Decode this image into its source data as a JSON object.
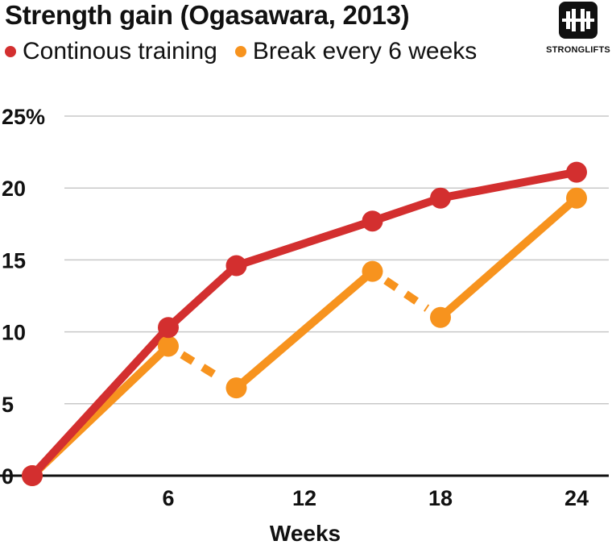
{
  "title": "Strength gain (Ogasawara, 2013)",
  "logo": {
    "text": "STRONGLIFTS",
    "icon": "barbell-icon"
  },
  "chart_data": {
    "type": "line",
    "title": "Strength gain (Ogasawara, 2013)",
    "xlabel": "Weeks",
    "ylabel": "",
    "xlim": [
      0,
      24
    ],
    "ylim": [
      0,
      25
    ],
    "x_ticks": [
      "6",
      "12",
      "18",
      "24"
    ],
    "x_tick_values": [
      6,
      12,
      18,
      24
    ],
    "y_ticks": [
      "0",
      "5",
      "10",
      "15",
      "20",
      "25%"
    ],
    "y_tick_values": [
      0,
      5,
      10,
      15,
      20,
      25
    ],
    "grid": true,
    "legend_position": "top-left",
    "series": [
      {
        "name": "Continous training",
        "color": "#d32f2f",
        "x": [
          0,
          6,
          9,
          15,
          18,
          24
        ],
        "y": [
          0,
          10.3,
          14.6,
          17.7,
          19.3,
          21.1
        ]
      },
      {
        "name": "Break every 6 weeks",
        "color": "#f7931e",
        "x": [
          0,
          6,
          9,
          15,
          18,
          24
        ],
        "y": [
          0,
          9.0,
          6.1,
          14.2,
          11.0,
          19.3
        ],
        "dashed_segments": [
          [
            1,
            2
          ],
          [
            3,
            4
          ]
        ]
      }
    ]
  }
}
